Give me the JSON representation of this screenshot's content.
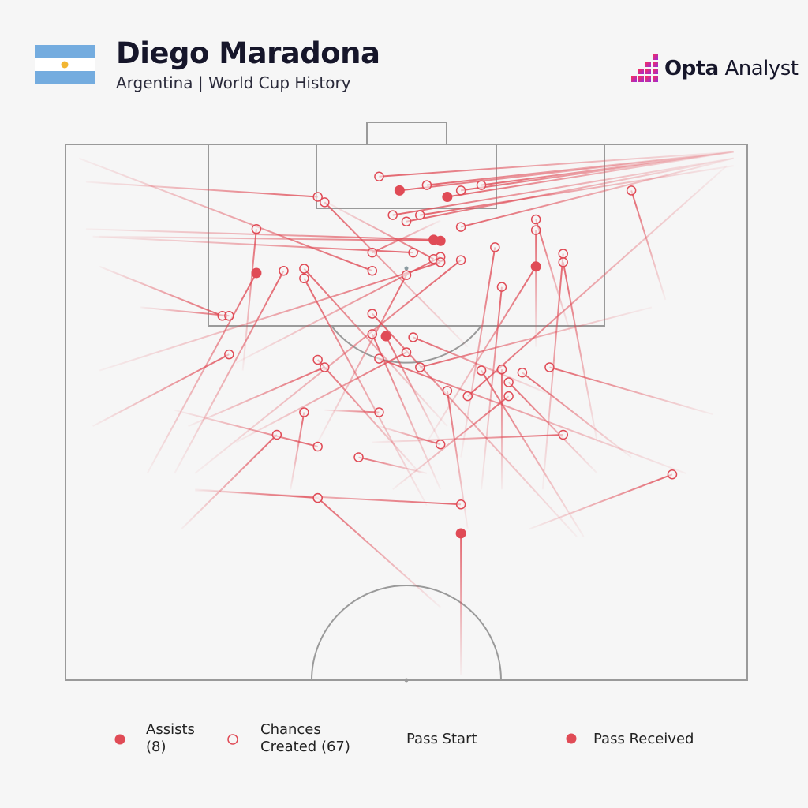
{
  "header": {
    "title": "Diego Maradona",
    "subtitle": "Argentina | World Cup History",
    "flag_icon": "argentina-flag",
    "logo": {
      "brand_bold": "Opta",
      "brand_regular": "Analyst"
    }
  },
  "colors": {
    "pass": "#e04b56",
    "pitch_lines": "#9a9a9a",
    "background": "#f6f6f6",
    "flag_blue": "#74acdf",
    "flag_sun": "#f2b632"
  },
  "legend": {
    "assists_label": "Assists",
    "assists_count": "(8)",
    "chances_label": "Chances",
    "chances_count": "Created (67)",
    "pass_start": "Pass Start",
    "pass_received": "Pass Received"
  },
  "chart_data": {
    "type": "pass-map",
    "pitch": "attacking half, attacking upward",
    "coordinate_note": "x = across pitch width 0-100 (left to right), y = pitch length 50-100 (100 = opponent goal line)",
    "fields": [
      "start_x",
      "start_y",
      "end_x",
      "end_y"
    ],
    "assists": [
      [
        98,
        99.3,
        49,
        95.7
      ],
      [
        98,
        99.3,
        56,
        95.1
      ],
      [
        3,
        92.1,
        54,
        91.1
      ],
      [
        5,
        91.4,
        55,
        91
      ],
      [
        12,
        69.3,
        28,
        88
      ],
      [
        53,
        72.2,
        69,
        88.6
      ],
      [
        55,
        72.2,
        47,
        82.1
      ],
      [
        58,
        50.5,
        58,
        63.7
      ]
    ],
    "chances_created": [
      [
        98,
        99.3,
        46,
        97
      ],
      [
        98,
        99.3,
        53,
        96.2
      ],
      [
        98,
        99.3,
        58,
        95.7
      ],
      [
        98,
        99.3,
        61,
        96.2
      ],
      [
        3,
        96.5,
        37,
        95.1
      ],
      [
        59,
        81.1,
        38,
        94.6
      ],
      [
        98,
        98.7,
        48,
        93.4
      ],
      [
        98,
        98.7,
        50,
        92.8
      ],
      [
        98,
        98,
        52,
        93.4
      ],
      [
        98,
        98.7,
        58,
        92.3
      ],
      [
        88,
        85.5,
        83,
        95.7
      ],
      [
        74,
        82.5,
        69,
        93
      ],
      [
        69,
        81.1,
        69,
        92
      ],
      [
        26,
        78.9,
        28,
        92.1
      ],
      [
        55,
        92.9,
        45,
        89.9
      ],
      [
        4,
        91.4,
        51,
        89.9
      ],
      [
        38,
        94.7,
        54,
        89.3
      ],
      [
        25,
        79.6,
        55,
        89.5
      ],
      [
        5,
        78.9,
        55,
        89
      ],
      [
        19,
        69.3,
        58,
        89.2
      ],
      [
        58,
        70.8,
        63,
        90.4
      ],
      [
        2,
        98.7,
        45,
        88.2
      ],
      [
        56,
        73.7,
        35,
        88.4
      ],
      [
        16,
        69.3,
        32,
        88.2
      ],
      [
        53,
        66.3,
        35,
        87.5
      ],
      [
        37,
        72.2,
        50,
        87.8
      ],
      [
        70,
        67.8,
        73,
        89.8
      ],
      [
        78,
        72.2,
        73,
        89
      ],
      [
        61,
        67.8,
        64,
        86.7
      ],
      [
        5,
        88.6,
        23,
        84
      ],
      [
        11,
        84.8,
        24,
        84
      ],
      [
        75,
        63.4,
        45,
        84.2
      ],
      [
        55,
        67.8,
        45,
        82.3
      ],
      [
        71,
        76.7,
        51,
        82
      ],
      [
        25,
        72.2,
        50,
        80.6
      ],
      [
        91,
        69.3,
        46,
        80
      ],
      [
        86,
        84.8,
        52,
        79.2
      ],
      [
        4,
        73.7,
        24,
        80.4
      ],
      [
        52,
        69.3,
        37,
        79.9
      ],
      [
        18,
        73.7,
        38,
        79.2
      ],
      [
        59,
        64.1,
        56,
        77
      ],
      [
        76,
        63.4,
        61,
        78.9
      ],
      [
        64,
        67.8,
        64,
        79
      ],
      [
        78,
        69.3,
        65,
        77.8
      ],
      [
        83,
        70.8,
        67,
        78.7
      ],
      [
        95,
        74.8,
        71,
        79.2
      ],
      [
        97,
        98,
        59,
        76.5
      ],
      [
        48,
        67.8,
        65,
        76.5
      ],
      [
        38,
        75.2,
        46,
        75
      ],
      [
        33,
        67.8,
        35,
        75
      ],
      [
        17,
        64.1,
        31,
        72.9
      ],
      [
        16,
        75.2,
        37,
        71.8
      ],
      [
        46,
        73.7,
        55,
        72
      ],
      [
        45,
        72.2,
        73,
        72.9
      ],
      [
        53,
        69.3,
        43,
        70.8
      ],
      [
        19,
        67.8,
        37,
        67
      ],
      [
        19,
        67.7,
        58,
        66.4
      ],
      [
        55,
        56.8,
        37,
        67
      ],
      [
        68,
        64.1,
        89,
        69.2
      ]
    ]
  }
}
